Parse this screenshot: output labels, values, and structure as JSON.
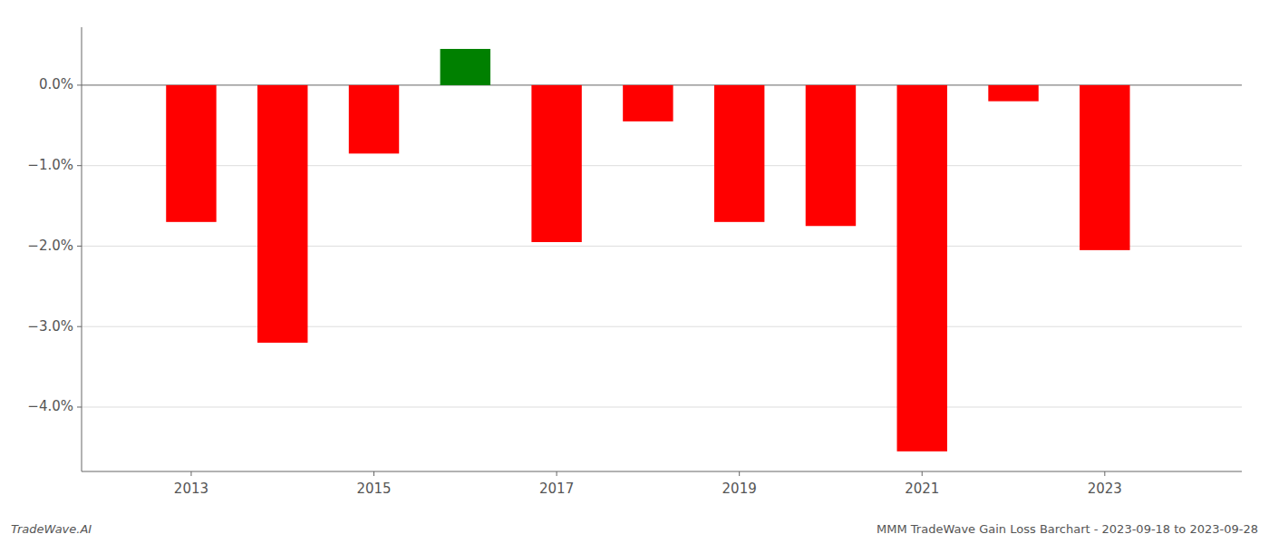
{
  "chart_data": {
    "type": "bar",
    "x": [
      2013,
      2014,
      2015,
      2016,
      2017,
      2018,
      2019,
      2020,
      2021,
      2022,
      2023
    ],
    "values": [
      -1.7,
      -3.2,
      -0.85,
      0.45,
      -1.95,
      -0.45,
      -1.7,
      -1.75,
      -4.55,
      -0.2,
      -2.05
    ],
    "colors": [
      "#ff0000",
      "#ff0000",
      "#ff0000",
      "#008000",
      "#ff0000",
      "#ff0000",
      "#ff0000",
      "#ff0000",
      "#ff0000",
      "#ff0000",
      "#ff0000"
    ],
    "xlim": [
      2011.8,
      2024.5
    ],
    "xticks": [
      2013,
      2015,
      2017,
      2019,
      2021,
      2023
    ],
    "ylim": [
      -4.8,
      0.72
    ],
    "yticks": [
      {
        "value": -4,
        "label": "−4.0%"
      },
      {
        "value": -3,
        "label": "−3.0%"
      },
      {
        "value": -2,
        "label": "−2.0%"
      },
      {
        "value": -1,
        "label": "−1.0%"
      },
      {
        "value": 0,
        "label": "0.0%"
      }
    ],
    "grid": true,
    "annotations": [
      "TradeWave.AI",
      "MMM TradeWave Gain Loss Barchart - 2023-09-18 to 2023-09-28"
    ]
  }
}
